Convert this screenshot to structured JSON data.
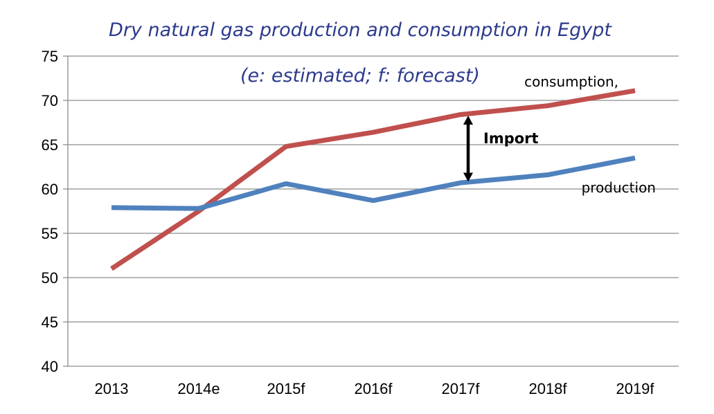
{
  "chart_data": {
    "type": "line",
    "title": "Dry natural gas production and consumption in Egypt",
    "subtitle": "(e: estimated; f: forecast)",
    "categories": [
      "2013",
      "2014e",
      "2015f",
      "2016f",
      "2017f",
      "2018f",
      "2019f"
    ],
    "ylim": [
      40,
      75
    ],
    "yticks": [
      40,
      45,
      50,
      55,
      60,
      65,
      70,
      75
    ],
    "ytick_labels": [
      "40",
      "45",
      "50",
      "55",
      "60",
      "65",
      "70",
      "75"
    ],
    "grid": true,
    "series": [
      {
        "name": "consumption,",
        "color": "#c0504d",
        "values": [
          51.0,
          57.5,
          64.8,
          66.4,
          68.4,
          69.4,
          71.1
        ]
      },
      {
        "name": "production",
        "color": "#4f81bd",
        "values": [
          57.9,
          57.8,
          60.6,
          58.7,
          60.7,
          61.6,
          63.5
        ]
      }
    ],
    "annotation": {
      "text": "Import",
      "category": "2017f",
      "from": 60.9,
      "to": 68.2
    }
  }
}
